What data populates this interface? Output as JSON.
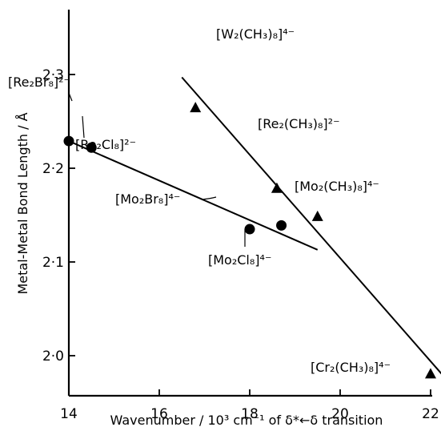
{
  "chart_data": {
    "type": "scatter",
    "xlabel": "Wavenumber / 10³ cm⁻¹ of δ*←δ transition",
    "ylabel": "Metal-Metal Bond Length / Å",
    "xlim": [
      14,
      22.5
    ],
    "ylim": [
      1.95,
      2.32
    ],
    "x_ticks": [
      14,
      16,
      18,
      20,
      22
    ],
    "x_tick_labels": [
      "14",
      "16",
      "18",
      "20",
      "22"
    ],
    "y_ticks": [
      2.0,
      2.1,
      2.2,
      2.3
    ],
    "y_tick_labels": [
      "2·0",
      "2·1",
      "2·2",
      "2·3"
    ],
    "grid": false,
    "series": [
      {
        "marker": "circle",
        "points": [
          {
            "x": 14.0,
            "y": 2.229,
            "label": "[Re₂Br₈]²⁻"
          },
          {
            "x": 14.5,
            "y": 2.222,
            "label": "[Re₂Cl₈]²⁻"
          },
          {
            "x": 18.0,
            "y": 2.135,
            "label": "[Mo₂Br₈]⁴⁻"
          },
          {
            "x": 18.7,
            "y": 2.139,
            "label": "[Mo₂Cl₈]⁴⁻"
          }
        ],
        "fit_line": {
          "x": [
            14.0,
            19.5
          ],
          "y": [
            2.229,
            2.113
          ]
        }
      },
      {
        "marker": "triangle",
        "points": [
          {
            "x": 16.8,
            "y": 2.264,
            "label": "[W₂(CH₃)₈]⁴⁻"
          },
          {
            "x": 18.6,
            "y": 2.178,
            "label": "[Re₂(CH₃)₈]²⁻"
          },
          {
            "x": 19.5,
            "y": 2.148,
            "label": "[Mo₂(CH₃)₈]⁴⁻"
          },
          {
            "x": 22.0,
            "y": 1.98,
            "label": "[Cr₂(CH₃)₈]⁴⁻"
          }
        ],
        "fit_line": {
          "x": [
            16.5,
            22.4
          ],
          "y": [
            2.297,
            1.972
          ]
        }
      }
    ]
  }
}
